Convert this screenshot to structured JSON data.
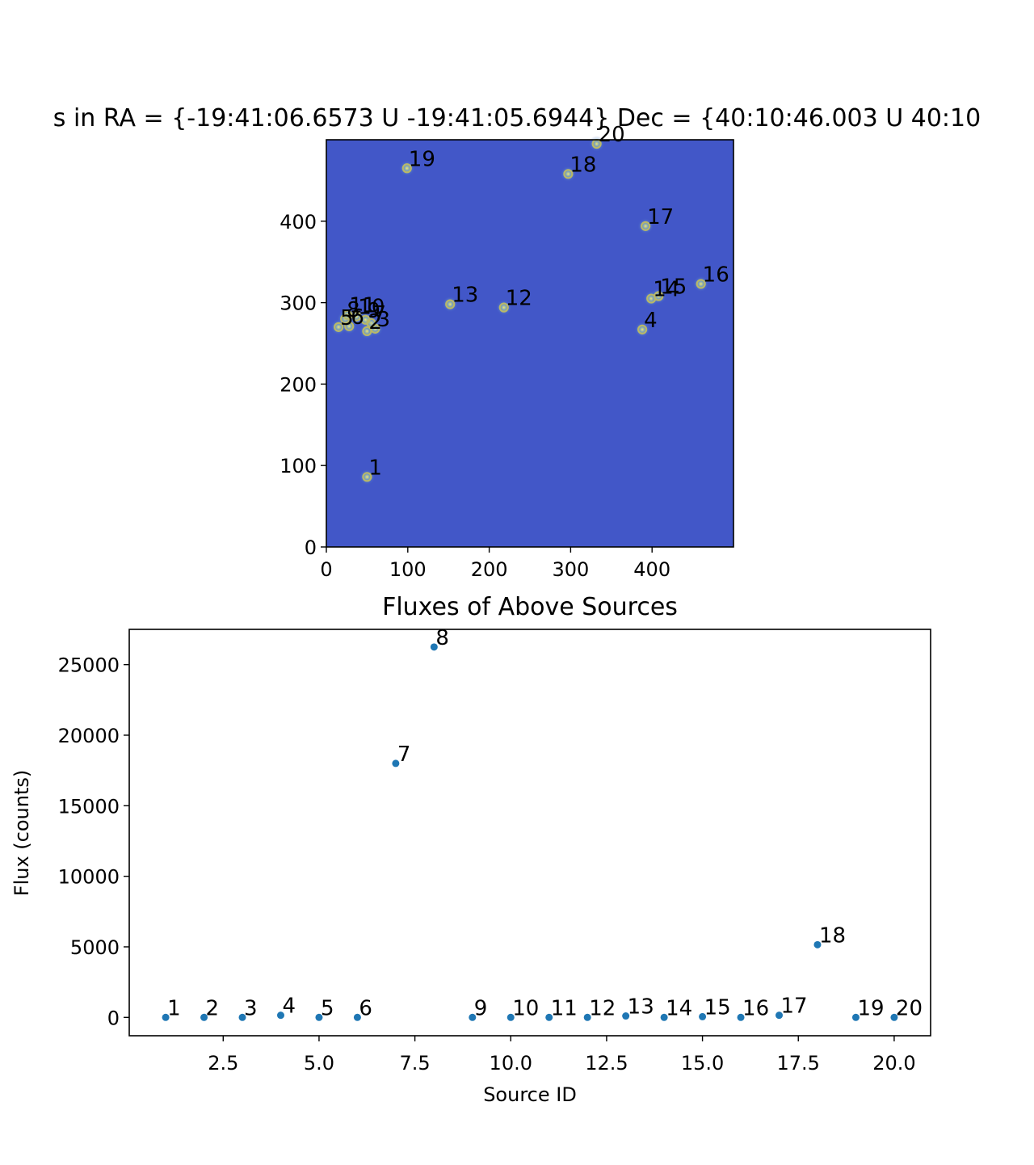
{
  "chart_data": [
    {
      "type": "image",
      "title": "s in RA = {-19:41:06.6573 U -19:41:05.6944} Dec = {40:10:46.003 U 40:10",
      "xlabel": "",
      "ylabel": "",
      "xlim": [
        0,
        500
      ],
      "ylim": [
        0,
        500
      ],
      "xticks": [
        0,
        100,
        200,
        300,
        400
      ],
      "yticks": [
        0,
        100,
        200,
        300,
        400
      ],
      "background_color": "#4257c8",
      "marker_color": "#b9b868",
      "points": [
        {
          "id": "1",
          "x": 50,
          "y": 86
        },
        {
          "id": "2",
          "x": 50,
          "y": 265
        },
        {
          "id": "3",
          "x": 60,
          "y": 268
        },
        {
          "id": "4",
          "x": 388,
          "y": 267
        },
        {
          "id": "5",
          "x": 15,
          "y": 270
        },
        {
          "id": "6",
          "x": 28,
          "y": 271
        },
        {
          "id": "7",
          "x": 55,
          "y": 275
        },
        {
          "id": "8",
          "x": 23,
          "y": 280
        },
        {
          "id": "9",
          "x": 48,
          "y": 279
        },
        {
          "id": "10",
          "x": 37,
          "y": 283
        },
        {
          "id": "11",
          "x": 26,
          "y": 285
        },
        {
          "id": "12",
          "x": 218,
          "y": 294
        },
        {
          "id": "13",
          "x": 152,
          "y": 298
        },
        {
          "id": "14",
          "x": 399,
          "y": 305
        },
        {
          "id": "15",
          "x": 408,
          "y": 308
        },
        {
          "id": "16",
          "x": 460,
          "y": 323
        },
        {
          "id": "17",
          "x": 392,
          "y": 394
        },
        {
          "id": "18",
          "x": 297,
          "y": 458
        },
        {
          "id": "19",
          "x": 99,
          "y": 465
        },
        {
          "id": "20",
          "x": 332,
          "y": 495
        }
      ]
    },
    {
      "type": "scatter",
      "title": "Fluxes of Above Sources",
      "xlabel": "Source ID",
      "ylabel": "Flux (counts)",
      "xlim": [
        0.05,
        20.95
      ],
      "ylim": [
        -1300,
        27500
      ],
      "xticks": [
        2.5,
        5.0,
        7.5,
        10.0,
        12.5,
        15.0,
        17.5,
        20.0
      ],
      "yticks": [
        0,
        5000,
        10000,
        15000,
        20000,
        25000
      ],
      "marker_color": "#1f77b4",
      "x": [
        1,
        2,
        3,
        4,
        5,
        6,
        7,
        8,
        9,
        10,
        11,
        12,
        13,
        14,
        15,
        16,
        17,
        18,
        19,
        20
      ],
      "values": [
        0,
        0,
        0,
        150,
        0,
        0,
        18000,
        26250,
        0,
        0,
        0,
        0,
        100,
        0,
        50,
        0,
        150,
        5150,
        0,
        0
      ],
      "labels": [
        "1",
        "2",
        "3",
        "4",
        "5",
        "6",
        "7",
        "8",
        "9",
        "10",
        "11",
        "12",
        "13",
        "14",
        "15",
        "16",
        "17",
        "18",
        "19",
        "20"
      ]
    }
  ]
}
